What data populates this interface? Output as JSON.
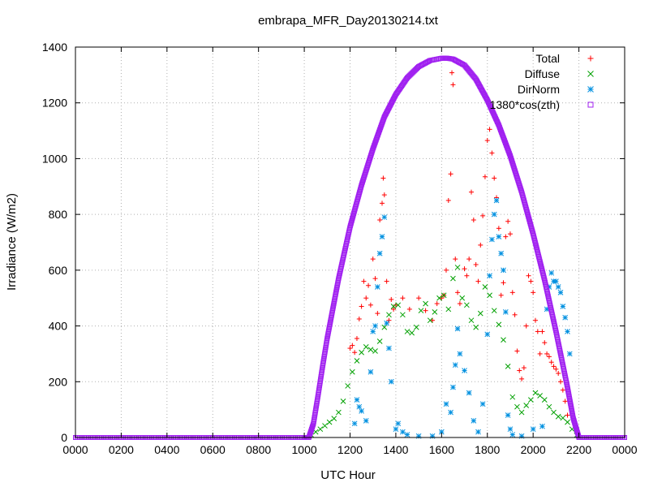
{
  "chart_data": {
    "type": "scatter",
    "title": "embrapa_MFR_Day20130214.txt",
    "xlabel": "UTC Hour",
    "ylabel": "Irradiance (W/m2)",
    "xlim": [
      0,
      2400
    ],
    "ylim": [
      0,
      1400
    ],
    "xticks": [
      "0000",
      "0200",
      "0400",
      "0600",
      "0800",
      "1000",
      "1200",
      "1400",
      "1600",
      "1800",
      "2000",
      "2200",
      "0000"
    ],
    "yticks": [
      0,
      200,
      400,
      600,
      800,
      1000,
      1200,
      1400
    ],
    "grid": true,
    "legend_position": "top-right",
    "series": [
      {
        "name": "Total",
        "marker": "plus",
        "color": "#ff0000",
        "points": [
          [
            1200,
            320
          ],
          [
            1210,
            330
          ],
          [
            1220,
            305
          ],
          [
            1230,
            355
          ],
          [
            1240,
            425
          ],
          [
            1250,
            470
          ],
          [
            1260,
            560
          ],
          [
            1270,
            500
          ],
          [
            1280,
            545
          ],
          [
            1290,
            475
          ],
          [
            1300,
            640
          ],
          [
            1310,
            570
          ],
          [
            1320,
            445
          ],
          [
            1330,
            780
          ],
          [
            1340,
            840
          ],
          [
            1345,
            930
          ],
          [
            1350,
            870
          ],
          [
            1360,
            560
          ],
          [
            1370,
            420
          ],
          [
            1380,
            495
          ],
          [
            1390,
            460
          ],
          [
            1400,
            475
          ],
          [
            1430,
            500
          ],
          [
            1460,
            460
          ],
          [
            1500,
            500
          ],
          [
            1530,
            455
          ],
          [
            1560,
            420
          ],
          [
            1580,
            480
          ],
          [
            1600,
            500
          ],
          [
            1610,
            510
          ],
          [
            1620,
            600
          ],
          [
            1630,
            850
          ],
          [
            1640,
            945
          ],
          [
            1645,
            1308
          ],
          [
            1650,
            1265
          ],
          [
            1660,
            640
          ],
          [
            1670,
            520
          ],
          [
            1680,
            480
          ],
          [
            1700,
            605
          ],
          [
            1710,
            580
          ],
          [
            1720,
            640
          ],
          [
            1730,
            880
          ],
          [
            1740,
            780
          ],
          [
            1750,
            620
          ],
          [
            1760,
            560
          ],
          [
            1770,
            690
          ],
          [
            1780,
            795
          ],
          [
            1790,
            935
          ],
          [
            1800,
            1065
          ],
          [
            1810,
            1105
          ],
          [
            1820,
            1020
          ],
          [
            1830,
            930
          ],
          [
            1840,
            860
          ],
          [
            1850,
            750
          ],
          [
            1860,
            510
          ],
          [
            1870,
            555
          ],
          [
            1880,
            720
          ],
          [
            1890,
            775
          ],
          [
            1900,
            730
          ],
          [
            1910,
            520
          ],
          [
            1920,
            440
          ],
          [
            1930,
            310
          ],
          [
            1940,
            240
          ],
          [
            1950,
            210
          ],
          [
            1960,
            250
          ],
          [
            1970,
            400
          ],
          [
            1980,
            580
          ],
          [
            1990,
            560
          ],
          [
            2000,
            520
          ],
          [
            2010,
            420
          ],
          [
            2020,
            380
          ],
          [
            2030,
            300
          ],
          [
            2040,
            380
          ],
          [
            2050,
            340
          ],
          [
            2060,
            300
          ],
          [
            2070,
            290
          ],
          [
            2080,
            270
          ],
          [
            2090,
            255
          ],
          [
            2100,
            245
          ],
          [
            2110,
            230
          ],
          [
            2120,
            200
          ],
          [
            2130,
            170
          ],
          [
            2140,
            130
          ],
          [
            2150,
            80
          ]
        ]
      },
      {
        "name": "Diffuse",
        "marker": "cross",
        "color": "#00a000",
        "points": [
          [
            1030,
            10
          ],
          [
            1050,
            20
          ],
          [
            1070,
            30
          ],
          [
            1090,
            42
          ],
          [
            1110,
            55
          ],
          [
            1130,
            68
          ],
          [
            1150,
            90
          ],
          [
            1170,
            130
          ],
          [
            1190,
            185
          ],
          [
            1210,
            235
          ],
          [
            1230,
            275
          ],
          [
            1250,
            305
          ],
          [
            1270,
            325
          ],
          [
            1290,
            315
          ],
          [
            1310,
            310
          ],
          [
            1330,
            345
          ],
          [
            1350,
            395
          ],
          [
            1370,
            440
          ],
          [
            1390,
            470
          ],
          [
            1410,
            475
          ],
          [
            1430,
            440
          ],
          [
            1450,
            380
          ],
          [
            1470,
            375
          ],
          [
            1490,
            395
          ],
          [
            1510,
            455
          ],
          [
            1530,
            480
          ],
          [
            1550,
            420
          ],
          [
            1570,
            450
          ],
          [
            1590,
            500
          ],
          [
            1610,
            510
          ],
          [
            1630,
            460
          ],
          [
            1650,
            570
          ],
          [
            1670,
            610
          ],
          [
            1690,
            500
          ],
          [
            1710,
            475
          ],
          [
            1730,
            420
          ],
          [
            1750,
            395
          ],
          [
            1770,
            445
          ],
          [
            1790,
            540
          ],
          [
            1810,
            510
          ],
          [
            1830,
            455
          ],
          [
            1850,
            405
          ],
          [
            1870,
            350
          ],
          [
            1890,
            255
          ],
          [
            1910,
            145
          ],
          [
            1930,
            110
          ],
          [
            1950,
            90
          ],
          [
            1970,
            115
          ],
          [
            1990,
            135
          ],
          [
            2010,
            160
          ],
          [
            2030,
            150
          ],
          [
            2050,
            135
          ],
          [
            2070,
            110
          ],
          [
            2090,
            90
          ],
          [
            2110,
            75
          ],
          [
            2130,
            70
          ],
          [
            2150,
            55
          ],
          [
            2170,
            30
          ],
          [
            2190,
            8
          ]
        ]
      },
      {
        "name": "DirNorm",
        "marker": "star",
        "color": "#0090e0",
        "points": [
          [
            1220,
            50
          ],
          [
            1230,
            135
          ],
          [
            1240,
            110
          ],
          [
            1250,
            95
          ],
          [
            1270,
            60
          ],
          [
            1290,
            235
          ],
          [
            1300,
            380
          ],
          [
            1310,
            400
          ],
          [
            1320,
            540
          ],
          [
            1330,
            660
          ],
          [
            1340,
            720
          ],
          [
            1350,
            790
          ],
          [
            1360,
            410
          ],
          [
            1370,
            320
          ],
          [
            1380,
            200
          ],
          [
            1400,
            30
          ],
          [
            1410,
            50
          ],
          [
            1430,
            20
          ],
          [
            1450,
            10
          ],
          [
            1500,
            5
          ],
          [
            1560,
            5
          ],
          [
            1600,
            20
          ],
          [
            1620,
            120
          ],
          [
            1640,
            90
          ],
          [
            1650,
            180
          ],
          [
            1660,
            260
          ],
          [
            1670,
            390
          ],
          [
            1680,
            300
          ],
          [
            1700,
            240
          ],
          [
            1720,
            160
          ],
          [
            1740,
            60
          ],
          [
            1760,
            20
          ],
          [
            1780,
            120
          ],
          [
            1800,
            370
          ],
          [
            1810,
            580
          ],
          [
            1820,
            710
          ],
          [
            1830,
            800
          ],
          [
            1840,
            850
          ],
          [
            1850,
            720
          ],
          [
            1860,
            660
          ],
          [
            1870,
            600
          ],
          [
            1880,
            450
          ],
          [
            1890,
            80
          ],
          [
            1900,
            30
          ],
          [
            1910,
            10
          ],
          [
            1950,
            5
          ],
          [
            2000,
            30
          ],
          [
            2040,
            40
          ],
          [
            2060,
            460
          ],
          [
            2070,
            540
          ],
          [
            2080,
            590
          ],
          [
            2090,
            560
          ],
          [
            2100,
            560
          ],
          [
            2110,
            540
          ],
          [
            2120,
            520
          ],
          [
            2130,
            470
          ],
          [
            2140,
            430
          ],
          [
            2150,
            380
          ],
          [
            2160,
            300
          ]
        ]
      },
      {
        "name": "1380*cos(zth)",
        "marker": "square",
        "color": "#a020f0",
        "points": [
          [
            0,
            0
          ],
          [
            1000,
            0
          ],
          [
            1020,
            0
          ],
          [
            1040,
            50
          ],
          [
            1060,
            150
          ],
          [
            1080,
            255
          ],
          [
            1100,
            355
          ],
          [
            1150,
            570
          ],
          [
            1200,
            755
          ],
          [
            1250,
            905
          ],
          [
            1300,
            1035
          ],
          [
            1350,
            1150
          ],
          [
            1400,
            1230
          ],
          [
            1450,
            1290
          ],
          [
            1500,
            1330
          ],
          [
            1550,
            1352
          ],
          [
            1600,
            1360
          ],
          [
            1625,
            1360
          ],
          [
            1650,
            1357
          ],
          [
            1700,
            1335
          ],
          [
            1750,
            1285
          ],
          [
            1800,
            1210
          ],
          [
            1850,
            1120
          ],
          [
            1900,
            1010
          ],
          [
            1950,
            880
          ],
          [
            2000,
            730
          ],
          [
            2050,
            565
          ],
          [
            2100,
            380
          ],
          [
            2150,
            180
          ],
          [
            2175,
            70
          ],
          [
            2200,
            0
          ],
          [
            2400,
            0
          ]
        ]
      }
    ]
  }
}
